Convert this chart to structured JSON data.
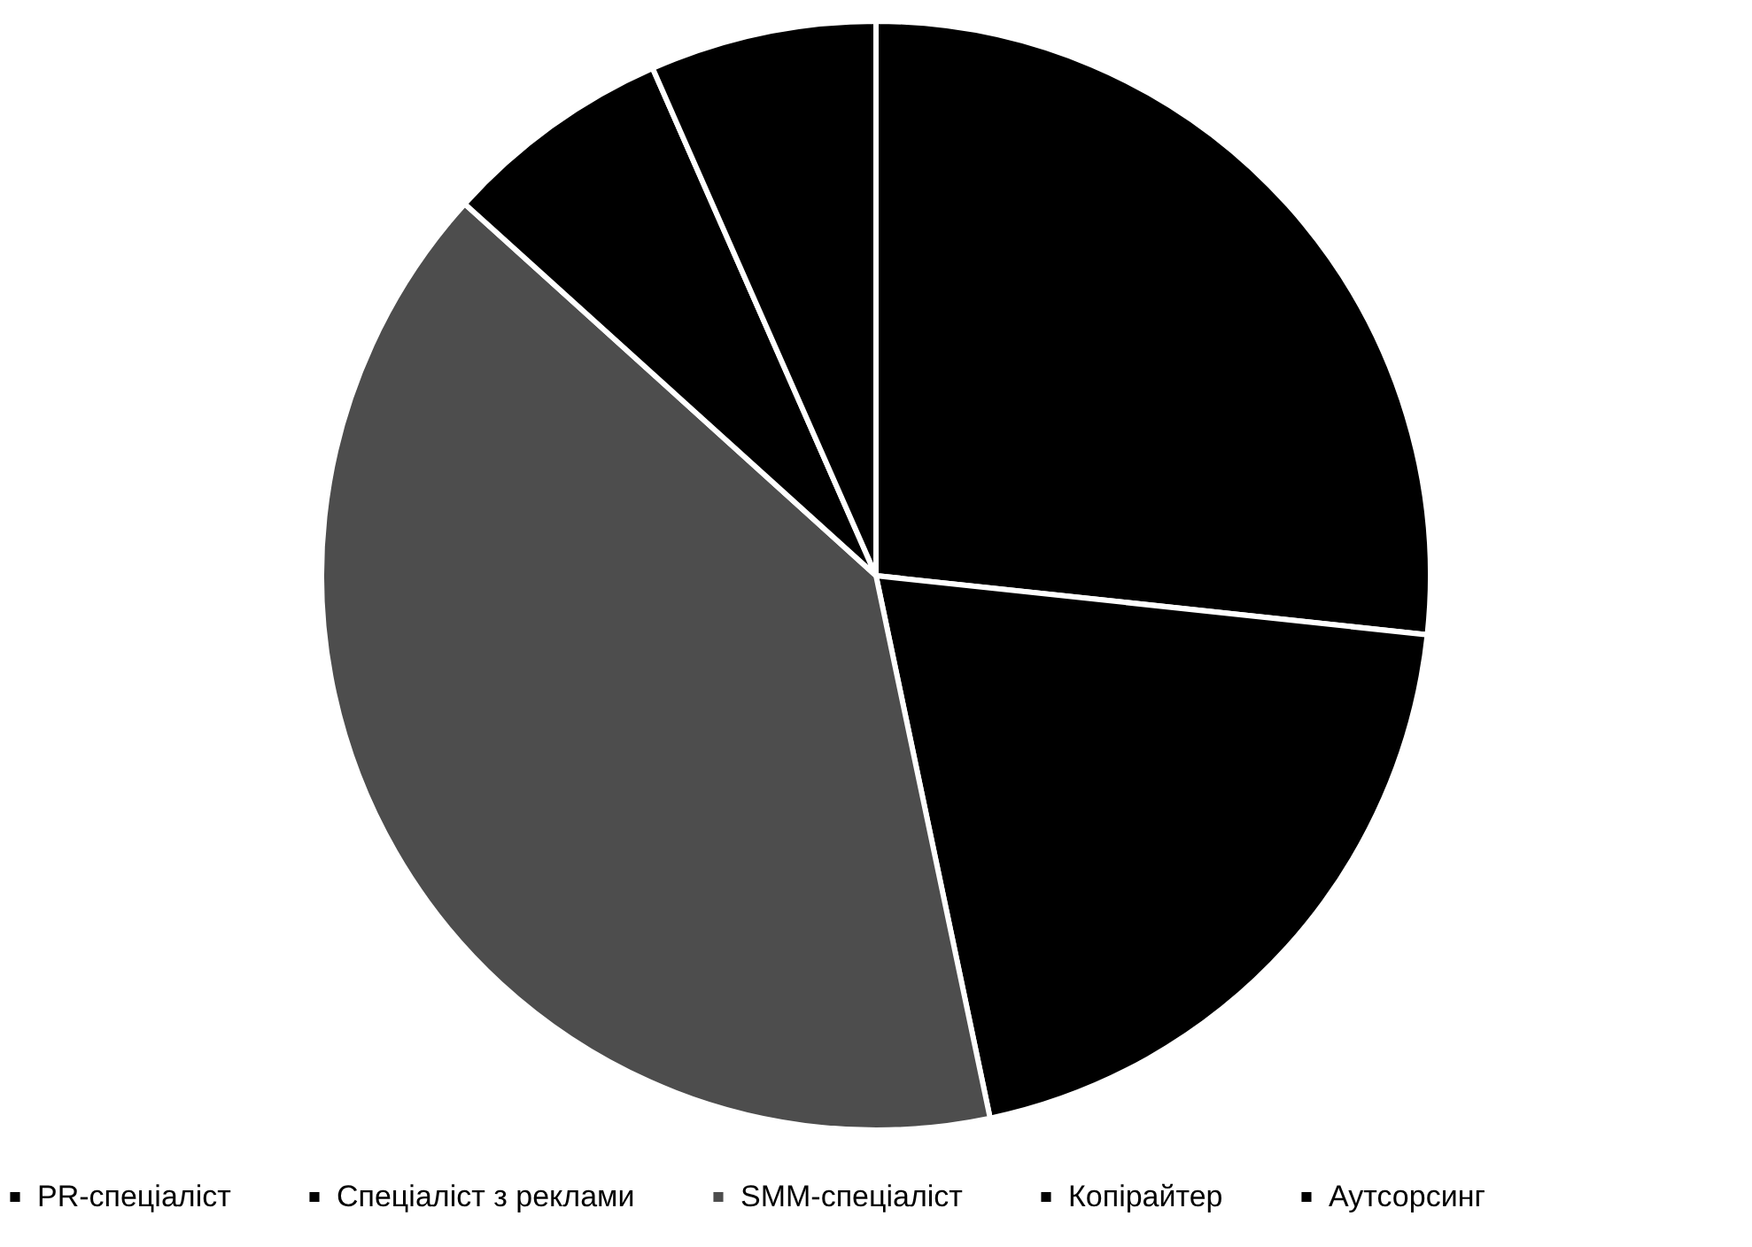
{
  "chart_data": {
    "type": "pie",
    "categories": [
      "PR-спеціаліст",
      "Спеціаліст з реклами",
      "SMM-спеціаліст",
      "Копірайтер",
      "Аутсорсинг"
    ],
    "values": [
      26.7,
      20,
      40,
      6.7,
      6.6
    ],
    "colors": [
      "#000000",
      "#000000",
      "#4d4d4d",
      "#000000",
      "#000000"
    ],
    "legend": "bottom"
  }
}
